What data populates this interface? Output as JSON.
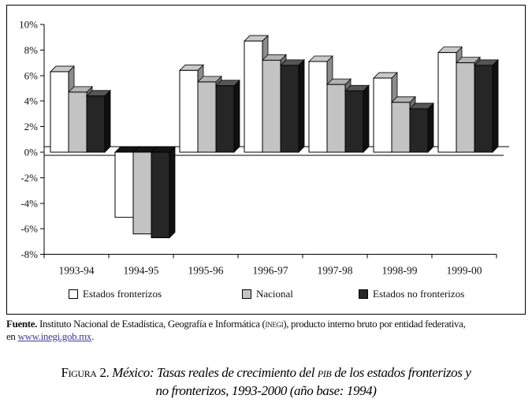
{
  "chart_data": {
    "type": "bar",
    "style": "3d-clustered",
    "categories": [
      "1993-94",
      "1994-95",
      "1995-96",
      "1996-97",
      "1997-98",
      "1998-99",
      "1999-00"
    ],
    "series": [
      {
        "name": "Estados fronterizos",
        "color": "#ffffff",
        "top_color": "#c9c9c9",
        "side_color": "#8c8c8c",
        "values": [
          6.3,
          -5.1,
          6.4,
          8.7,
          7.1,
          5.8,
          7.8
        ]
      },
      {
        "name": "Nacional",
        "color": "#c3c3c3",
        "top_color": "#b2b2b2",
        "side_color": "#6e6e6e",
        "values": [
          4.7,
          -6.4,
          5.5,
          7.2,
          5.3,
          3.9,
          7.0
        ]
      },
      {
        "name": "Estados no fronterizos",
        "color": "#262626",
        "top_color": "#555555",
        "side_color": "#101010",
        "values": [
          4.4,
          -6.7,
          5.2,
          6.8,
          4.8,
          3.4,
          6.8
        ]
      }
    ],
    "negative_cap_color": "#141414",
    "ylim": [
      -8,
      10
    ],
    "ytick_step": 2,
    "ytick_labels": [
      "10%",
      "8%",
      "6%",
      "4%",
      "2%",
      "0%",
      "-2%",
      "-4%",
      "-6%",
      "-8%"
    ],
    "grid": false,
    "legend_position": "bottom",
    "title": "",
    "xlabel": "",
    "ylabel": ""
  },
  "footer": {
    "label": "Fuente.",
    "text1": " Instituto Nacional de Estadística, Geografía e Informática (",
    "inegi": "inegi",
    "text2": "), producto interno bruto por entidad federativa,",
    "line2_prefix": "en ",
    "link": "www.inegi.gob.mx",
    "after_link": "."
  },
  "caption": {
    "fig_label": "Figura 2. ",
    "text1": "México: Tasas reales de crecimiento del ",
    "pib": "pib",
    "text2": " de los estados fronterizos y",
    "line2": "no fronterizos, 1993-2000 (año base: 1994)"
  }
}
